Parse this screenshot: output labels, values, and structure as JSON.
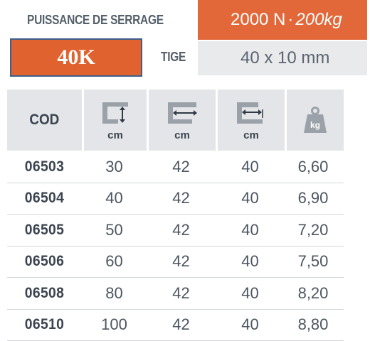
{
  "header": {
    "force_label": "PUISSANCE DE SERRAGE",
    "force_value_main": "2000 N",
    "force_value_sep": "·",
    "force_value_alt": "200kg",
    "model": "40K",
    "rod_label": "TIGE",
    "rod_value": "40 x 10 mm"
  },
  "table": {
    "headers": [
      {
        "text": "COD"
      },
      {
        "icon": "clamp-opening-vertical-icon",
        "unit": "cm"
      },
      {
        "icon": "clamp-reach-horizontal-icon",
        "unit": "cm"
      },
      {
        "icon": "clamp-throat-depth-icon",
        "unit": "cm"
      },
      {
        "icon": "weight-kg-icon",
        "icon_text": "kg"
      }
    ],
    "rows": [
      {
        "code": "06503",
        "opening": "30",
        "reach": "42",
        "depth": "40",
        "weight": "6,60"
      },
      {
        "code": "06504",
        "opening": "40",
        "reach": "42",
        "depth": "40",
        "weight": "6,90"
      },
      {
        "code": "06505",
        "opening": "50",
        "reach": "42",
        "depth": "40",
        "weight": "7,20"
      },
      {
        "code": "06506",
        "opening": "60",
        "reach": "42",
        "depth": "40",
        "weight": "7,50"
      },
      {
        "code": "06508",
        "opening": "80",
        "reach": "42",
        "depth": "40",
        "weight": "8,20"
      },
      {
        "code": "06510",
        "opening": "100",
        "reach": "42",
        "depth": "40",
        "weight": "8,80"
      }
    ]
  },
  "colors": {
    "orange": "#e2683a",
    "grey_panel": "#e9eaeb",
    "text_dark": "#3b4450",
    "model_border": "#3e5f8a"
  }
}
